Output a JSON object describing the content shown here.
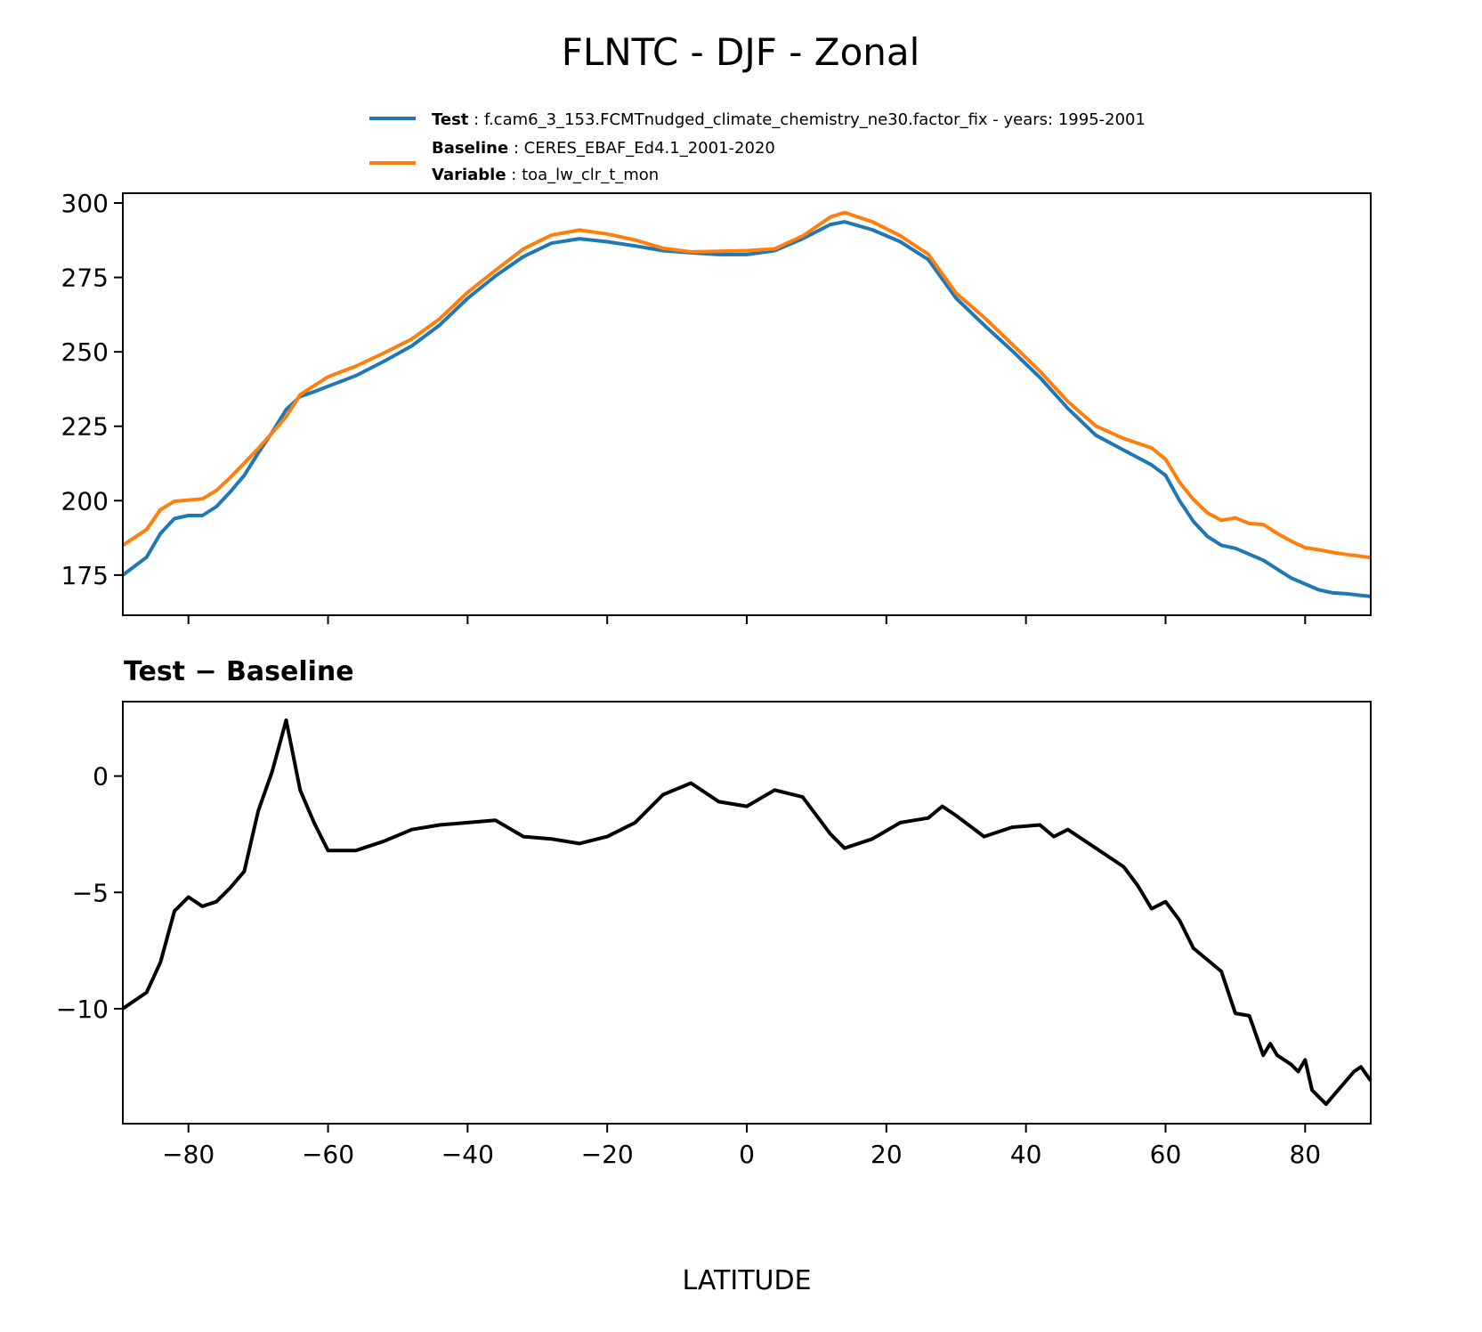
{
  "chart_data": [
    {
      "type": "line",
      "title": "FLNTC - DJF - Zonal",
      "xlabel": "",
      "ylabel": "",
      "xlim": [
        -89.4,
        89.4
      ],
      "ylim": [
        161.5,
        303.3
      ],
      "xticks": [
        -80,
        -60,
        -40,
        -20,
        0,
        20,
        40,
        60,
        80
      ],
      "yticks": [
        175,
        200,
        225,
        250,
        275,
        300
      ],
      "grid": false,
      "legend_position": "top-right",
      "x": [
        -89.4,
        -86,
        -84,
        -82,
        -80,
        -78,
        -76,
        -74,
        -72,
        -70,
        -68,
        -66,
        -64,
        -62,
        -60,
        -56,
        -52,
        -48,
        -44,
        -40,
        -36,
        -32,
        -28,
        -24,
        -20,
        -16,
        -12,
        -8,
        -4,
        0,
        4,
        8,
        12,
        14,
        18,
        22,
        26,
        30,
        34,
        38,
        42,
        46,
        50,
        54,
        58,
        60,
        62,
        64,
        66,
        68,
        70,
        72,
        74,
        76,
        78,
        80,
        82,
        84,
        86,
        89.4
      ],
      "series": [
        {
          "name": "Test",
          "legend_label": "Test",
          "legend_text": "f.cam6_3_153.FCMTnudged_climate_chemistry_ne30.factor_fix - years: 1995-2001",
          "color": "#1f77b4",
          "values": [
            175,
            181,
            189,
            194,
            195,
            195,
            198,
            203,
            208.5,
            216,
            223,
            230.6,
            235,
            236.6,
            238.4,
            242,
            246.8,
            252,
            259,
            268,
            275.5,
            282,
            286.5,
            288,
            287,
            285.6,
            284,
            283.3,
            282.7,
            282.7,
            284,
            288,
            292.8,
            293.7,
            291,
            287,
            281,
            268,
            259,
            250.4,
            241.4,
            231,
            222,
            217,
            212,
            208.5,
            200,
            193,
            188,
            185,
            184,
            182,
            180,
            177,
            174,
            172,
            170,
            169,
            168.7,
            167.8
          ]
        },
        {
          "name": "Baseline",
          "legend_label": "Baseline",
          "legend_text": "CERES_EBAF_Ed4.1_2001-2020",
          "legend_label2": "Variable",
          "legend_text2": "toa_lw_clr_t_mon",
          "color": "#ff7f0e",
          "values": [
            185,
            190.3,
            197,
            199.8,
            200.2,
            200.6,
            203.4,
            207.8,
            212.6,
            217.5,
            222.8,
            228.2,
            235.6,
            238.6,
            241.6,
            245.2,
            249.6,
            254.3,
            261.1,
            270,
            277.4,
            284.6,
            289.2,
            290.9,
            289.6,
            287.6,
            284.8,
            283.6,
            283.8,
            284,
            284.6,
            288.9,
            295.3,
            296.8,
            293.7,
            289,
            282.8,
            269.7,
            261.6,
            252.6,
            243.5,
            233.3,
            225.1,
            220.9,
            217.7,
            213.9,
            206.2,
            200.4,
            195.9,
            193.4,
            194.2,
            192.3,
            192,
            189,
            186.4,
            184.2,
            183.5,
            182.6,
            181.9,
            180.9
          ]
        }
      ]
    },
    {
      "type": "line",
      "title": "Test − Baseline",
      "xlabel": "LATITUDE",
      "ylabel": "",
      "xlim": [
        -89.4,
        89.4
      ],
      "ylim": [
        -14.94,
        3.2
      ],
      "xticks": [
        -80,
        -60,
        -40,
        -20,
        0,
        20,
        40,
        60,
        80
      ],
      "xtick_labels": [
        "−80",
        "−60",
        "−40",
        "−20",
        "0",
        "20",
        "40",
        "60",
        "80"
      ],
      "yticks": [
        -10,
        -5,
        0
      ],
      "ytick_labels": [
        "−10",
        "−5",
        "0"
      ],
      "grid": false,
      "x": [
        -89.4,
        -86,
        -84,
        -82,
        -80,
        -78,
        -76,
        -74,
        -72,
        -70,
        -68,
        -66,
        -64,
        -62,
        -60,
        -56,
        -52,
        -48,
        -44,
        -40,
        -36,
        -32,
        -28,
        -24,
        -20,
        -16,
        -12,
        -8,
        -4,
        0,
        4,
        8,
        12,
        14,
        18,
        22,
        26,
        28,
        30,
        34,
        38,
        42,
        44,
        46,
        50,
        54,
        56,
        58,
        60,
        62,
        64,
        66,
        68,
        70,
        72,
        74,
        75,
        76,
        78,
        79,
        80,
        81,
        83,
        85,
        87,
        88,
        89.4
      ],
      "series": [
        {
          "color": "#000000",
          "values": [
            -10,
            -9.3,
            -8,
            -5.8,
            -5.2,
            -5.6,
            -5.4,
            -4.8,
            -4.1,
            -1.5,
            0.2,
            2.4,
            -0.6,
            -2.0,
            -3.2,
            -3.2,
            -2.8,
            -2.3,
            -2.1,
            -2.0,
            -1.9,
            -2.6,
            -2.7,
            -2.9,
            -2.6,
            -2.0,
            -0.8,
            -0.3,
            -1.1,
            -1.3,
            -0.6,
            -0.9,
            -2.5,
            -3.1,
            -2.7,
            -2.0,
            -1.8,
            -1.3,
            -1.7,
            -2.6,
            -2.2,
            -2.1,
            -2.6,
            -2.3,
            -3.1,
            -3.9,
            -4.7,
            -5.7,
            -5.4,
            -6.2,
            -7.4,
            -7.9,
            -8.4,
            -10.2,
            -10.3,
            -12.0,
            -11.5,
            -12.0,
            -12.4,
            -12.7,
            -12.2,
            -13.5,
            -14.1,
            -13.4,
            -12.7,
            -12.5,
            -13.1
          ]
        }
      ]
    }
  ]
}
